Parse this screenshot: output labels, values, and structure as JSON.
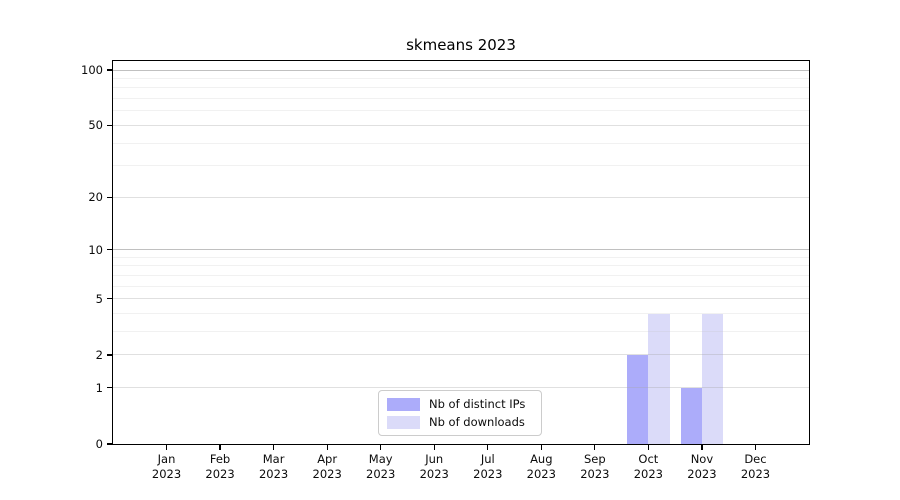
{
  "chart_data": {
    "type": "bar",
    "title": "skmeans 2023",
    "categories": [
      "Jan",
      "Feb",
      "Mar",
      "Apr",
      "May",
      "Jun",
      "Jul",
      "Aug",
      "Sep",
      "Oct",
      "Nov",
      "Dec"
    ],
    "category_year": "2023",
    "series": [
      {
        "name": "Nb of distinct IPs",
        "color": "#acacfa",
        "values": [
          0,
          0,
          0,
          0,
          0,
          0,
          0,
          0,
          0,
          2,
          1,
          0
        ]
      },
      {
        "name": "Nb of downloads",
        "color": "#dbdbf9",
        "values": [
          0,
          0,
          0,
          0,
          0,
          0,
          0,
          0,
          0,
          4,
          4,
          0
        ]
      }
    ],
    "xlabel": "",
    "ylabel": "",
    "yscale": "log1p",
    "ylim": [
      0,
      112
    ],
    "yticks": [
      0,
      1,
      2,
      5,
      10,
      20,
      50,
      100
    ],
    "minor_yticks": [
      3,
      4,
      6,
      7,
      8,
      9,
      30,
      40,
      60,
      70,
      80,
      90
    ],
    "grid": "horizontal",
    "legend_position": "bottom-center",
    "colors": {
      "spine": "#000000",
      "tick_label": "#0c0c0c",
      "background": "#ffffff"
    }
  }
}
